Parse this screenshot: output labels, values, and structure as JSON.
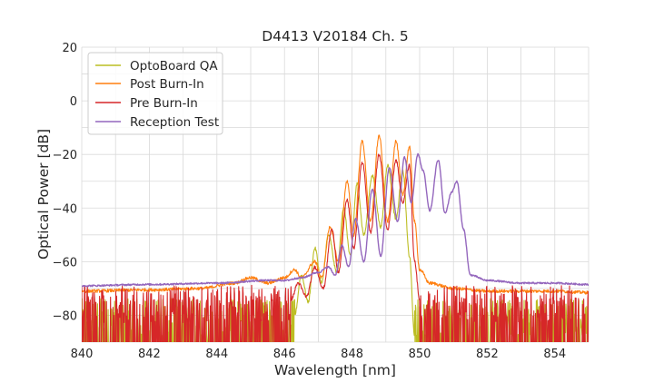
{
  "chart_data": {
    "type": "line",
    "title": "D4413 V20184 Ch. 5",
    "xlabel": "Wavelength [nm]",
    "ylabel": "Optical Power [dB]",
    "xlim": [
      840,
      855
    ],
    "ylim": [
      -90,
      20
    ],
    "xticks": [
      840,
      842,
      844,
      846,
      848,
      850,
      852,
      854
    ],
    "xtick_labels": [
      "840",
      "842",
      "844",
      "846",
      "848",
      "850",
      "852",
      "854"
    ],
    "yticks": [
      20,
      0,
      -20,
      -40,
      -60,
      -80
    ],
    "ytick_labels": [
      "20",
      "0",
      "−20",
      "−40",
      "−60",
      "−80"
    ],
    "grid": true,
    "legend_position": "top-left",
    "series": [
      {
        "name": "OptoBoard QA",
        "color": "#bcbd22",
        "floor": -85,
        "floor_range": [
          840,
          855
        ],
        "points": [
          [
            846.3,
            -80
          ],
          [
            846.5,
            -65
          ],
          [
            846.7,
            -75
          ],
          [
            846.9,
            -55
          ],
          [
            847.1,
            -68
          ],
          [
            847.3,
            -50
          ],
          [
            847.55,
            -64
          ],
          [
            847.75,
            -40
          ],
          [
            847.95,
            -58
          ],
          [
            848.15,
            -31
          ],
          [
            848.35,
            -50
          ],
          [
            848.6,
            -28
          ],
          [
            848.85,
            -47
          ],
          [
            849.05,
            -24
          ],
          [
            849.3,
            -44
          ],
          [
            849.5,
            -26
          ],
          [
            849.7,
            -58
          ],
          [
            849.85,
            -88
          ]
        ]
      },
      {
        "name": "Post Burn-In",
        "color": "#ff7f0e",
        "floor": -72,
        "floor_range": [
          840,
          855
        ],
        "points": [
          [
            840,
            -71
          ],
          [
            842,
            -70.5
          ],
          [
            843.5,
            -70
          ],
          [
            844.5,
            -68
          ],
          [
            845.0,
            -66
          ],
          [
            845.5,
            -68
          ],
          [
            846.0,
            -66
          ],
          [
            846.3,
            -63
          ],
          [
            846.5,
            -66
          ],
          [
            846.9,
            -60
          ],
          [
            847.1,
            -66
          ],
          [
            847.35,
            -47
          ],
          [
            847.6,
            -60
          ],
          [
            847.85,
            -30
          ],
          [
            848.05,
            -50
          ],
          [
            848.3,
            -15
          ],
          [
            848.55,
            -45
          ],
          [
            848.8,
            -13
          ],
          [
            849.05,
            -45
          ],
          [
            849.3,
            -15
          ],
          [
            849.5,
            -35
          ],
          [
            849.7,
            -17
          ],
          [
            849.85,
            -45
          ],
          [
            850.0,
            -63
          ],
          [
            850.3,
            -68
          ],
          [
            851,
            -70
          ],
          [
            852,
            -71
          ],
          [
            853,
            -71
          ],
          [
            854,
            -71
          ],
          [
            855,
            -71.5
          ]
        ]
      },
      {
        "name": "Pre Burn-In",
        "color": "#d62728",
        "floor": -80,
        "floor_range": [
          840,
          855
        ],
        "points": [
          [
            846.2,
            -74
          ],
          [
            846.4,
            -68
          ],
          [
            846.65,
            -73
          ],
          [
            846.9,
            -62
          ],
          [
            847.15,
            -70
          ],
          [
            847.4,
            -48
          ],
          [
            847.6,
            -64
          ],
          [
            847.85,
            -37
          ],
          [
            848.05,
            -55
          ],
          [
            848.3,
            -23
          ],
          [
            848.55,
            -49
          ],
          [
            848.8,
            -20
          ],
          [
            849.05,
            -48
          ],
          [
            849.3,
            -22
          ],
          [
            849.5,
            -38
          ],
          [
            849.7,
            -24
          ],
          [
            849.85,
            -60
          ],
          [
            850.0,
            -74
          ]
        ]
      },
      {
        "name": "Reception Test",
        "color": "#9467bd",
        "points": [
          [
            840,
            -69
          ],
          [
            842,
            -68.5
          ],
          [
            844,
            -68
          ],
          [
            845.5,
            -67
          ],
          [
            846.0,
            -67
          ],
          [
            846.5,
            -66
          ],
          [
            847.0,
            -64
          ],
          [
            847.3,
            -62
          ],
          [
            847.5,
            -65
          ],
          [
            847.7,
            -54
          ],
          [
            847.9,
            -62
          ],
          [
            848.1,
            -44
          ],
          [
            848.35,
            -60
          ],
          [
            848.6,
            -33
          ],
          [
            848.85,
            -58
          ],
          [
            849.1,
            -25
          ],
          [
            849.35,
            -45
          ],
          [
            849.55,
            -21
          ],
          [
            849.75,
            -38
          ],
          [
            849.95,
            -20
          ],
          [
            850.1,
            -26
          ],
          [
            850.3,
            -41
          ],
          [
            850.55,
            -22
          ],
          [
            850.75,
            -42
          ],
          [
            850.95,
            -34
          ],
          [
            851.1,
            -30
          ],
          [
            851.3,
            -48
          ],
          [
            851.5,
            -65
          ],
          [
            852,
            -67
          ],
          [
            853,
            -68
          ],
          [
            854,
            -68
          ],
          [
            855,
            -68.5
          ]
        ]
      }
    ]
  }
}
